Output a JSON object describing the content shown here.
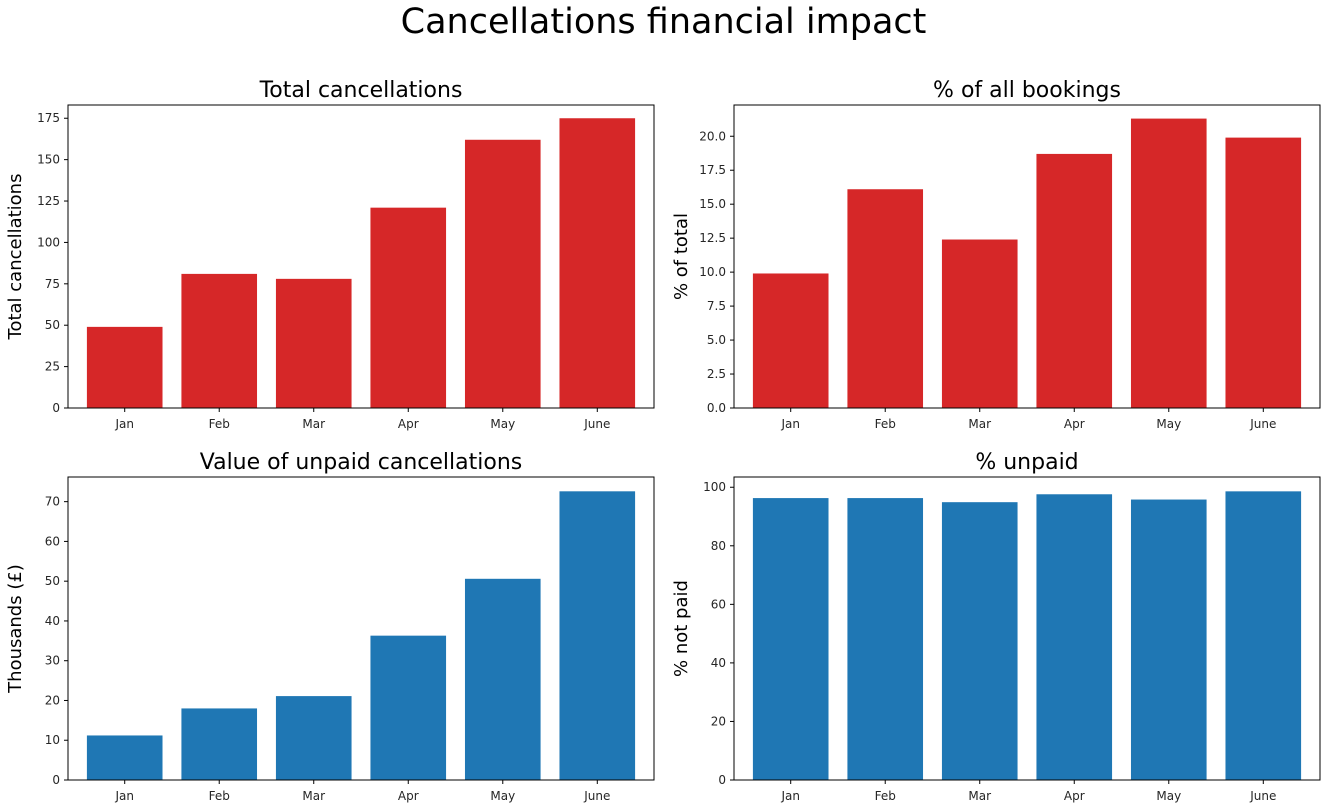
{
  "figure": {
    "title": "Cancellations financial impact"
  },
  "chart_data": [
    {
      "type": "bar",
      "title": "Total cancellations",
      "xlabel": "",
      "ylabel": "Total cancellations",
      "categories": [
        "Jan",
        "Feb",
        "Mar",
        "Apr",
        "May",
        "June"
      ],
      "values": [
        49,
        81,
        78,
        121,
        162,
        175
      ],
      "ylim": [
        0,
        183
      ],
      "yticks": [
        0,
        25,
        50,
        75,
        100,
        125,
        150,
        175
      ],
      "tick_decimals": 0,
      "color": "#d62728",
      "grid": false
    },
    {
      "type": "bar",
      "title": "% of all bookings",
      "xlabel": "",
      "ylabel": "% of total",
      "categories": [
        "Jan",
        "Feb",
        "Mar",
        "Apr",
        "May",
        "June"
      ],
      "values": [
        9.9,
        16.1,
        12.4,
        18.7,
        21.3,
        19.9
      ],
      "ylim": [
        0,
        22.3
      ],
      "yticks": [
        0,
        2.5,
        5,
        7.5,
        10,
        12.5,
        15,
        17.5,
        20
      ],
      "tick_decimals": 1,
      "color": "#d62728",
      "grid": false
    },
    {
      "type": "bar",
      "title": "Value of unpaid cancellations",
      "xlabel": "",
      "ylabel": "Thousands (£)",
      "categories": [
        "Jan",
        "Feb",
        "Mar",
        "Apr",
        "May",
        "June"
      ],
      "values": [
        11.2,
        18.0,
        21.1,
        36.3,
        50.6,
        72.6
      ],
      "ylim": [
        0,
        76.2
      ],
      "yticks": [
        0,
        10,
        20,
        30,
        40,
        50,
        60,
        70
      ],
      "tick_decimals": 0,
      "color": "#1f77b4",
      "grid": false
    },
    {
      "type": "bar",
      "title": "% unpaid",
      "xlabel": "",
      "ylabel": "% not paid",
      "categories": [
        "Jan",
        "Feb",
        "Mar",
        "Apr",
        "May",
        "June"
      ],
      "values": [
        96.3,
        96.3,
        94.9,
        97.6,
        95.8,
        98.6
      ],
      "ylim": [
        0,
        103.5
      ],
      "yticks": [
        0,
        20,
        40,
        60,
        80,
        100
      ],
      "tick_decimals": 0,
      "color": "#1f77b4",
      "grid": false
    }
  ]
}
